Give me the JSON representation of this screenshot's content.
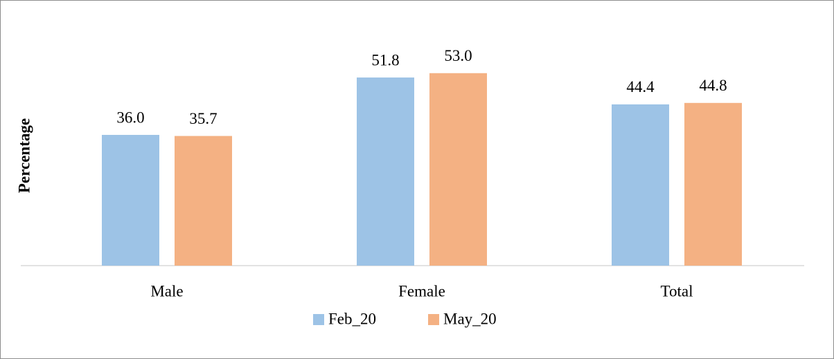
{
  "chart_data": {
    "type": "bar",
    "y_label": "Percentage",
    "categories": [
      "Male",
      "Female",
      "Total"
    ],
    "series": [
      {
        "name": "Feb_20",
        "color": "#9dc3e6",
        "values": [
          36.0,
          51.8,
          44.4
        ],
        "value_labels": [
          "36.0",
          "51.8",
          "44.4"
        ]
      },
      {
        "name": "May_20",
        "color": "#f4b183",
        "values": [
          35.7,
          53.0,
          44.8
        ],
        "value_labels": [
          "35.7",
          "53.0",
          "44.8"
        ]
      }
    ],
    "ylim": [
      0,
      60
    ],
    "grid": false,
    "legend": "bottom"
  }
}
